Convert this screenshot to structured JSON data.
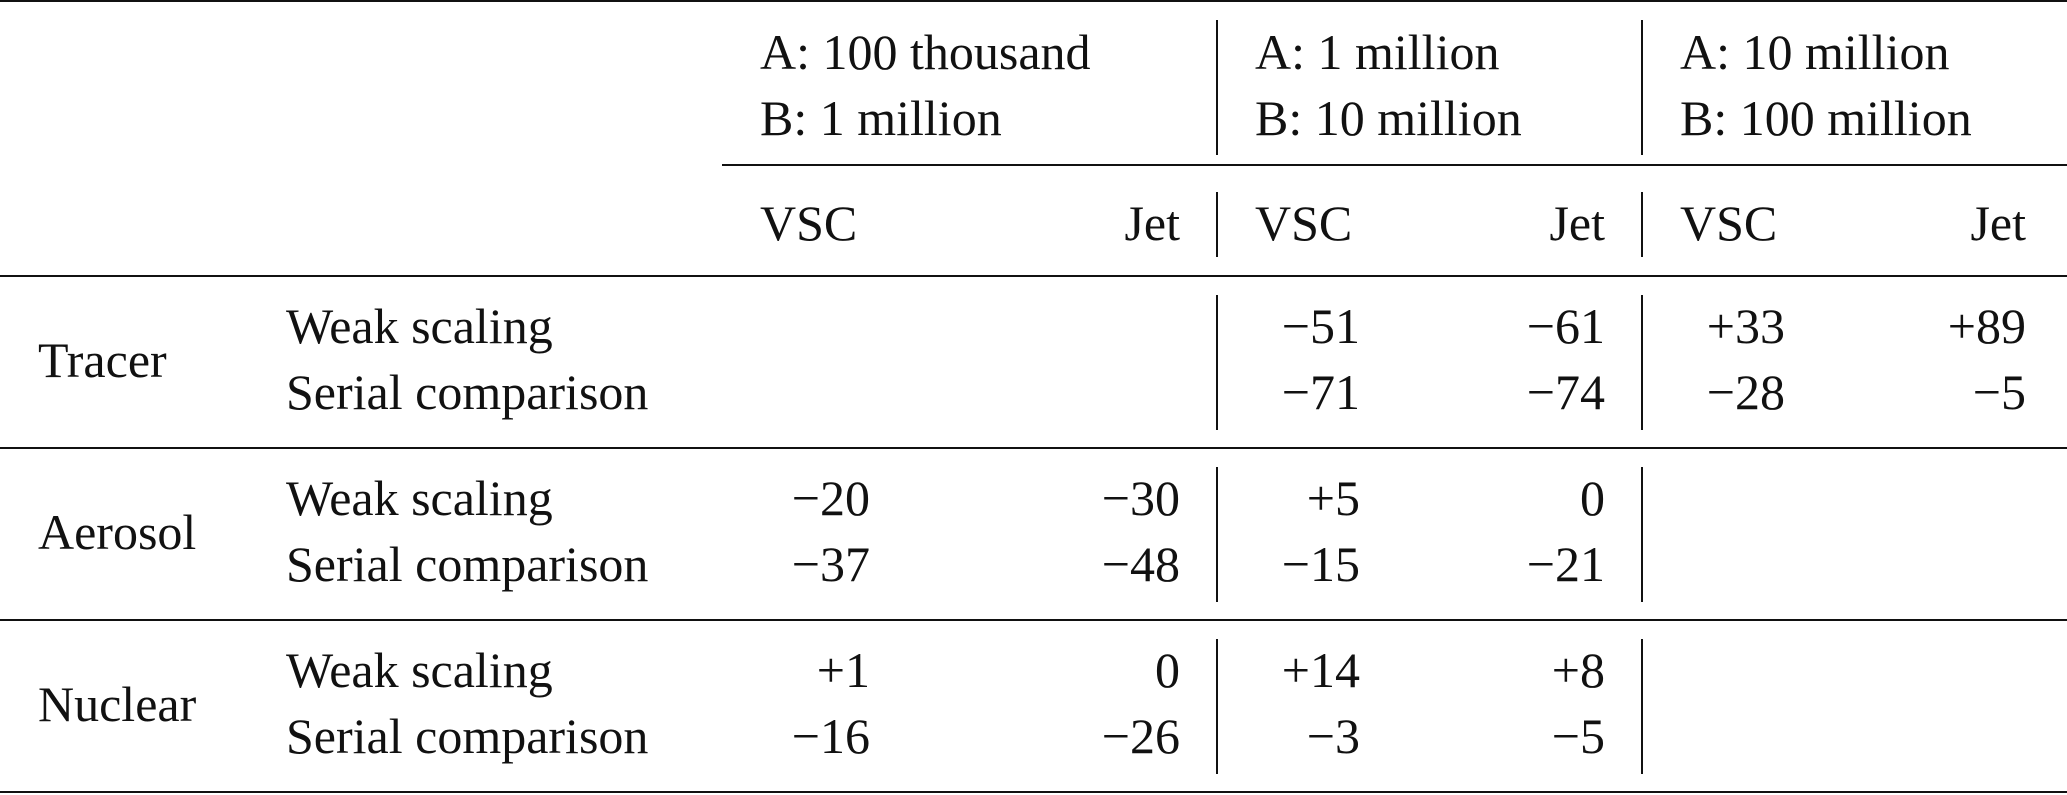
{
  "table": {
    "group_headers": [
      {
        "a": "A: 100 thousand",
        "b": "B: 1 million"
      },
      {
        "a": "A: 1 million",
        "b": "B: 10 million"
      },
      {
        "a": "A: 10 million",
        "b": "B: 100 million"
      }
    ],
    "subheaders": [
      "VSC",
      "Jet",
      "VSC",
      "Jet",
      "VSC",
      "Jet"
    ],
    "sections": [
      {
        "name": "Tracer",
        "rows": [
          {
            "label": "Weak scaling",
            "values": [
              "",
              "",
              "−51",
              "−61",
              "+33",
              "+89"
            ]
          },
          {
            "label": "Serial comparison",
            "values": [
              "",
              "",
              "−71",
              "−74",
              "−28",
              "−5"
            ]
          }
        ]
      },
      {
        "name": "Aerosol",
        "rows": [
          {
            "label": "Weak scaling",
            "values": [
              "−20",
              "−30",
              "+5",
              "0",
              "",
              ""
            ]
          },
          {
            "label": "Serial comparison",
            "values": [
              "−37",
              "−48",
              "−15",
              "−21",
              "",
              ""
            ]
          }
        ]
      },
      {
        "name": "Nuclear",
        "rows": [
          {
            "label": "Weak scaling",
            "values": [
              "+1",
              "0",
              "+14",
              "+8",
              "",
              ""
            ]
          },
          {
            "label": "Serial comparison",
            "values": [
              "−16",
              "−26",
              "−3",
              "−5",
              "",
              ""
            ]
          }
        ]
      }
    ]
  }
}
